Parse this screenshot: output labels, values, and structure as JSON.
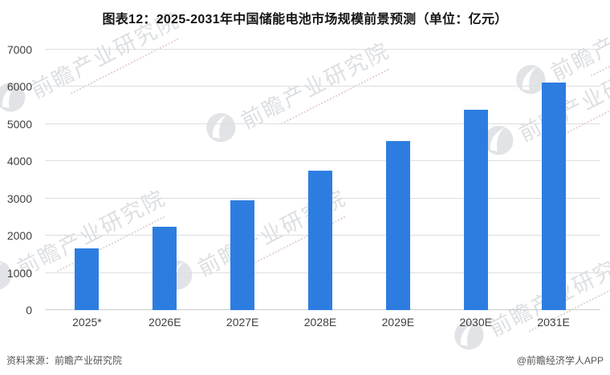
{
  "title": "图表12：2025-2031年中国储能电池市场规模前景预测（单位：亿元）",
  "chart_data": {
    "type": "bar",
    "title": "图表12：2025-2031年中国储能电池市场规模前景预测",
    "unit_label": "单位：亿元",
    "categories": [
      "2025*",
      "2026E",
      "2027E",
      "2028E",
      "2029E",
      "2030E",
      "2031E"
    ],
    "values": [
      1650,
      2250,
      2960,
      3750,
      4550,
      5390,
      6120
    ],
    "xlabel": "",
    "ylabel": "",
    "ylim": [
      0,
      7000
    ],
    "ytick_step": 1000,
    "yticks": [
      "0",
      "1000",
      "2000",
      "3000",
      "4000",
      "5000",
      "6000",
      "7000"
    ],
    "grid": true,
    "legend": false,
    "bar_color": "#2D7DE1"
  },
  "footer": {
    "source": "资料来源：前瞻产业研究院",
    "credit": "@前瞻经济学人APP"
  },
  "watermark": {
    "text": "前瞻产业研究院"
  },
  "colors": {
    "bar": "#2D7DE1",
    "gridline": "#DCDEE0",
    "axis_line": "#C8CBCE",
    "tick_text": "#3F3F3F",
    "title_text": "#141414",
    "footer_text": "#555555"
  }
}
